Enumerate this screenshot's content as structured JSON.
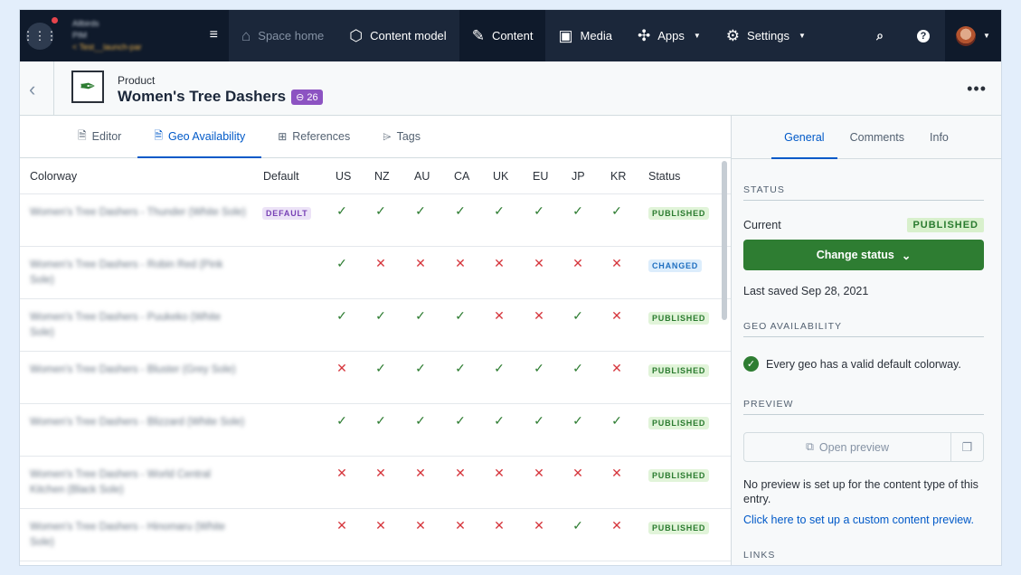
{
  "nav": {
    "space_lines": [
      "Allbirds",
      "PIM",
      "< Test__launch-par"
    ],
    "items": [
      {
        "label": "Space home",
        "icon": "home-icon"
      },
      {
        "label": "Content model",
        "icon": "cube-icon"
      },
      {
        "label": "Content",
        "icon": "edit-icon"
      },
      {
        "label": "Media",
        "icon": "image-icon"
      },
      {
        "label": "Apps",
        "icon": "puzzle-icon"
      },
      {
        "label": "Settings",
        "icon": "gear-icon"
      }
    ],
    "help": "?"
  },
  "entry": {
    "content_type": "Product",
    "title": "Women's Tree Dashers",
    "ref_count": "26"
  },
  "tabs": [
    {
      "label": "Editor",
      "icon": "document-icon"
    },
    {
      "label": "Geo Availability",
      "icon": "document-icon"
    },
    {
      "label": "References",
      "icon": "references-icon"
    },
    {
      "label": "Tags",
      "icon": "tag-icon"
    }
  ],
  "table": {
    "headers": [
      "Colorway",
      "Default",
      "US",
      "NZ",
      "AU",
      "CA",
      "UK",
      "EU",
      "JP",
      "KR",
      "Status"
    ],
    "rows": [
      {
        "colorway": "Women's Tree Dashers - Thunder (White Sole)",
        "default": "DEFAULT",
        "geo": [
          1,
          1,
          1,
          1,
          1,
          1,
          1,
          1
        ],
        "status": "PUBLISHED"
      },
      {
        "colorway": "Women's Tree Dashers - Robin Red (Pink Sole)",
        "default": "",
        "geo": [
          1,
          0,
          0,
          0,
          0,
          0,
          0,
          0
        ],
        "status": "CHANGED"
      },
      {
        "colorway": "Women's Tree Dashers - Puukeko (White Sole)",
        "default": "",
        "geo": [
          1,
          1,
          1,
          1,
          0,
          0,
          1,
          0
        ],
        "status": "PUBLISHED"
      },
      {
        "colorway": "Women's Tree Dashers - Bluster (Grey Sole)",
        "default": "",
        "geo": [
          0,
          1,
          1,
          1,
          1,
          1,
          1,
          0
        ],
        "status": "PUBLISHED"
      },
      {
        "colorway": "Women's Tree Dashers - Blizzard (White Sole)",
        "default": "",
        "geo": [
          1,
          1,
          1,
          1,
          1,
          1,
          1,
          1
        ],
        "status": "PUBLISHED"
      },
      {
        "colorway": "Women's Tree Dashers - World Central Kitchen (Black Sole)",
        "default": "",
        "geo": [
          0,
          0,
          0,
          0,
          0,
          0,
          0,
          0
        ],
        "status": "PUBLISHED"
      },
      {
        "colorway": "Women's Tree Dashers - Hinomaru (White Sole)",
        "default": "",
        "geo": [
          0,
          0,
          0,
          0,
          0,
          0,
          1,
          0
        ],
        "status": "PUBLISHED"
      }
    ]
  },
  "sidebar": {
    "tabs": [
      "General",
      "Comments",
      "Info"
    ],
    "status_heading": "STATUS",
    "current_label": "Current",
    "current_status": "PUBLISHED",
    "change_status": "Change status",
    "last_saved": "Last saved Sep 28, 2021",
    "geo_heading": "GEO AVAILABILITY",
    "geo_message": "Every geo has a valid default colorway.",
    "preview_heading": "PREVIEW",
    "open_preview": "Open preview",
    "no_preview": "No preview is set up for the content type of this entry.",
    "setup_link": "Click here to set up a custom content preview.",
    "links_heading": "LINKS"
  },
  "colors": {
    "nav_bg": "#1b273a",
    "accent": "#0059c8",
    "success": "#2e7d32",
    "error": "#d6363d",
    "ref_badge": "#8c53c2"
  }
}
